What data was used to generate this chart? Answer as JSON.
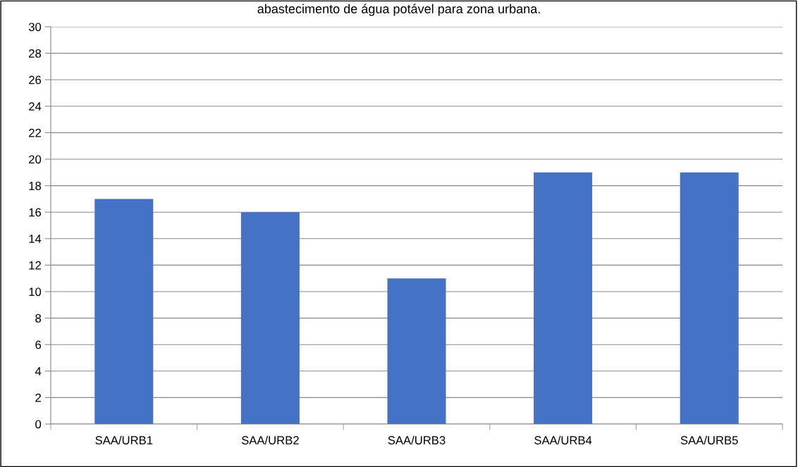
{
  "chart_data": {
    "type": "bar",
    "title": "abastecimento de água potável para zona urbana.",
    "categories": [
      "SAA/URB1",
      "SAA/URB2",
      "SAA/URB3",
      "SAA/URB4",
      "SAA/URB5"
    ],
    "values": [
      17,
      16,
      11,
      19,
      19
    ],
    "color": "#4472c4",
    "ylim": [
      0,
      30
    ],
    "yticks": [
      0,
      2,
      4,
      6,
      8,
      10,
      12,
      14,
      16,
      18,
      20,
      22,
      24,
      26,
      28,
      30
    ],
    "grid": "y",
    "legend": false
  }
}
